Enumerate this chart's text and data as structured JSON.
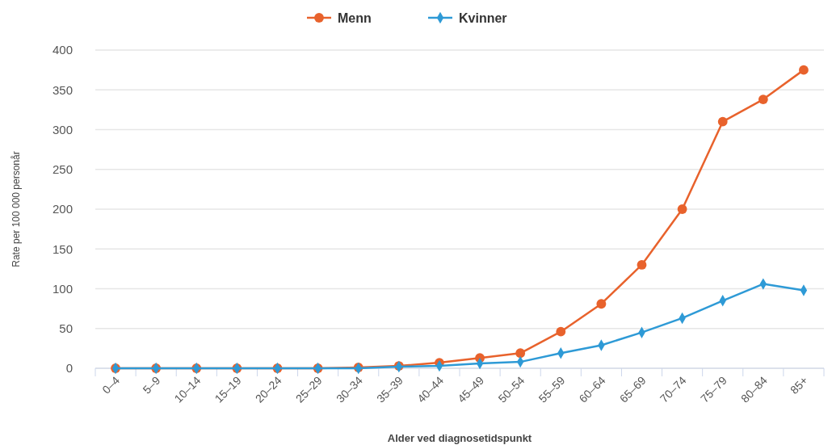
{
  "chart_data": {
    "type": "line",
    "xlabel": "Alder ved diagnosetidspunkt",
    "ylabel": "Rate per 100 000 personår",
    "categories": [
      "0–4",
      "5–9",
      "10–14",
      "15–19",
      "20–24",
      "25–29",
      "30–34",
      "35–39",
      "40–44",
      "45–49",
      "50–54",
      "55–59",
      "60–64",
      "65–69",
      "70–74",
      "75–79",
      "80–84",
      "85+"
    ],
    "series": [
      {
        "name": "Menn",
        "color": "#e8622c",
        "marker": "circle",
        "values": [
          0,
          0,
          0,
          0,
          0,
          0,
          1,
          3,
          7,
          13,
          19,
          46,
          81,
          130,
          200,
          310,
          338,
          375
        ]
      },
      {
        "name": "Kvinner",
        "color": "#2e9ad6",
        "marker": "diamond",
        "values": [
          0,
          0,
          0,
          0,
          0,
          0,
          0,
          2,
          3,
          6,
          8,
          19,
          29,
          45,
          63,
          85,
          106,
          98
        ]
      }
    ],
    "ylim": [
      0,
      400
    ],
    "yticks": [
      0,
      50,
      100,
      150,
      200,
      250,
      300,
      350,
      400
    ],
    "grid": "y",
    "legend": "top"
  }
}
